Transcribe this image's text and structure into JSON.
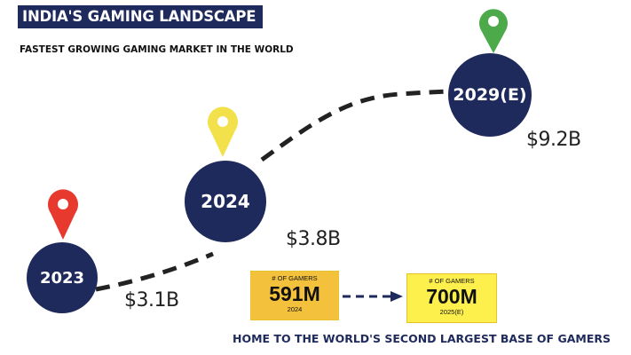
{
  "header": {
    "title": "INDIA'S GAMING LANDSCAPE",
    "subtitle": "FASTEST GROWING GAMING MARKET IN THE WORLD"
  },
  "milestones": [
    {
      "year": "2023",
      "value": "$3.1B",
      "pin_color": "#e8392f"
    },
    {
      "year": "2024",
      "value": "$3.8B",
      "pin_color": "#f2e14a"
    },
    {
      "year": "2029(E)",
      "value": "$9.2B",
      "pin_color": "#4caa4a"
    }
  ],
  "gamers": [
    {
      "label": "# OF GAMERS",
      "number": "591M",
      "year": "2024"
    },
    {
      "label": "# OF GAMERS",
      "number": "700M",
      "year": "2025(E)"
    }
  ],
  "footer": {
    "tagline": "HOME TO THE WORLD'S SECOND LARGEST BASE OF GAMERS"
  },
  "colors": {
    "navy": "#1f2a5c",
    "gold": "#f3c13b",
    "yellow": "#fdf04d"
  }
}
